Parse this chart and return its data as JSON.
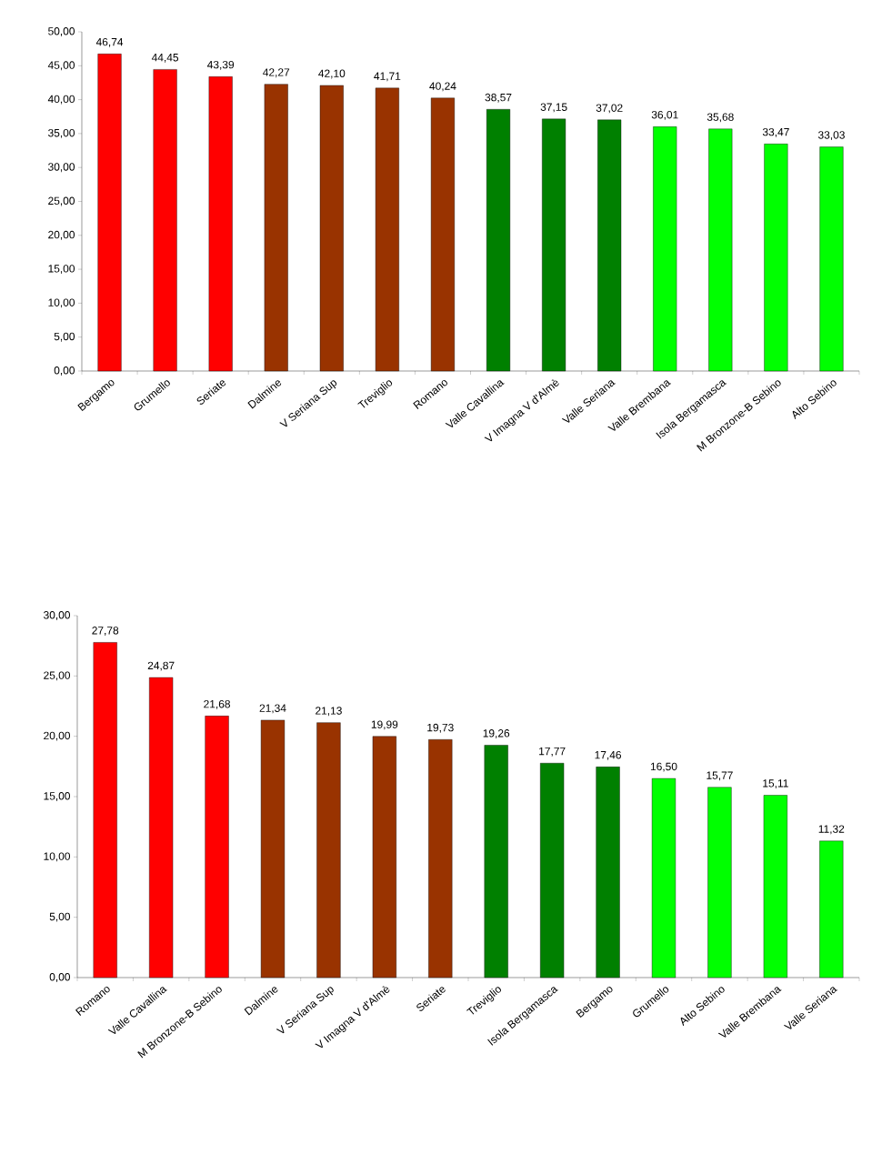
{
  "chart_data": [
    {
      "type": "bar",
      "categories": [
        "Bergamo",
        "Grumello",
        "Seriate",
        "Dalmine",
        "V Seriana Sup",
        "Treviglio",
        "Romano",
        "Valle Cavallina",
        "V Imagna V d'Almè",
        "Valle Seriana",
        "Valle Brembana",
        "Isola Bergamasca",
        "M Bronzone-B Sebino",
        "Alto Sebino"
      ],
      "values": [
        46.74,
        44.45,
        43.39,
        42.27,
        42.1,
        41.71,
        40.24,
        38.57,
        37.15,
        37.02,
        36.01,
        35.68,
        33.47,
        33.03
      ],
      "value_labels": [
        "46,74",
        "44,45",
        "43,39",
        "42,27",
        "42,10",
        "41,71",
        "40,24",
        "38,57",
        "37,15",
        "37,02",
        "36,01",
        "35,68",
        "33,47",
        "33,03"
      ],
      "colors": [
        "#ff0000",
        "#ff0000",
        "#ff0000",
        "#993300",
        "#993300",
        "#993300",
        "#993300",
        "#008000",
        "#008000",
        "#008000",
        "#00ff00",
        "#00ff00",
        "#00ff00",
        "#00ff00"
      ],
      "ylim": [
        0,
        50
      ],
      "yticks": [
        {
          "value": 0,
          "label": "0,00"
        },
        {
          "value": 5,
          "label": "5,00"
        },
        {
          "value": 10,
          "label": "10,00"
        },
        {
          "value": 15,
          "label": "15,00"
        },
        {
          "value": 20,
          "label": "20,00"
        },
        {
          "value": 25,
          "label": "25,00"
        },
        {
          "value": 30,
          "label": "30,00"
        },
        {
          "value": 35,
          "label": "35,00"
        },
        {
          "value": 40,
          "label": "40,00"
        },
        {
          "value": 45,
          "label": "45,00"
        },
        {
          "value": 50,
          "label": "50,00"
        }
      ]
    },
    {
      "type": "bar",
      "categories": [
        "Romano",
        "Valle Cavallina",
        "M Bronzone-B Sebino",
        "Dalmine",
        "V Seriana Sup",
        "V Imagna V d'Almè",
        "Seriate",
        "Treviglio",
        "Isola Bergamasca",
        "Bergamo",
        "Grumello",
        "Alto Sebino",
        "Valle Brembana",
        "Valle Seriana"
      ],
      "values": [
        27.78,
        24.87,
        21.68,
        21.34,
        21.13,
        19.99,
        19.73,
        19.26,
        17.77,
        17.46,
        16.5,
        15.77,
        15.11,
        11.32
      ],
      "value_labels": [
        "27,78",
        "24,87",
        "21,68",
        "21,34",
        "21,13",
        "19,99",
        "19,73",
        "19,26",
        "17,77",
        "17,46",
        "16,50",
        "15,77",
        "15,11",
        "11,32"
      ],
      "colors": [
        "#ff0000",
        "#ff0000",
        "#ff0000",
        "#993300",
        "#993300",
        "#993300",
        "#993300",
        "#008000",
        "#008000",
        "#008000",
        "#00ff00",
        "#00ff00",
        "#00ff00",
        "#00ff00"
      ],
      "ylim": [
        0,
        30
      ],
      "yticks": [
        {
          "value": 0,
          "label": "0,00"
        },
        {
          "value": 5,
          "label": "5,00"
        },
        {
          "value": 10,
          "label": "10,00"
        },
        {
          "value": 15,
          "label": "15,00"
        },
        {
          "value": 20,
          "label": "20,00"
        },
        {
          "value": 25,
          "label": "25,00"
        },
        {
          "value": 30,
          "label": "30,00"
        }
      ]
    }
  ]
}
